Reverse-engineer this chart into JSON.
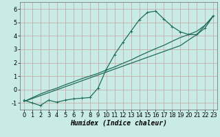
{
  "xlabel": "Humidex (Indice chaleur)",
  "ylabel": "",
  "x": [
    0,
    1,
    2,
    3,
    4,
    5,
    6,
    7,
    8,
    9,
    10,
    11,
    12,
    13,
    14,
    15,
    16,
    17,
    18,
    19,
    20,
    21,
    22,
    23
  ],
  "y_main": [
    -0.8,
    -1.0,
    -1.2,
    -0.8,
    -0.95,
    -0.8,
    -0.7,
    -0.65,
    -0.6,
    0.1,
    1.5,
    2.6,
    3.5,
    4.35,
    5.2,
    5.75,
    5.85,
    5.25,
    4.7,
    4.3,
    4.1,
    4.1,
    4.6,
    5.5
  ],
  "y_line1": [
    -0.9,
    -0.68,
    -0.46,
    -0.24,
    -0.02,
    0.2,
    0.42,
    0.64,
    0.86,
    1.08,
    1.3,
    1.52,
    1.74,
    1.96,
    2.18,
    2.4,
    2.62,
    2.84,
    3.06,
    3.28,
    3.7,
    4.1,
    4.8,
    5.5
  ],
  "y_line2": [
    -0.9,
    -0.62,
    -0.34,
    -0.1,
    0.1,
    0.35,
    0.57,
    0.8,
    1.0,
    1.2,
    1.45,
    1.68,
    1.95,
    2.2,
    2.5,
    2.78,
    3.05,
    3.3,
    3.6,
    3.88,
    4.1,
    4.35,
    4.8,
    5.5
  ],
  "bg_color": "#c8ebe6",
  "grid_color": "#c8a0a0",
  "line_color": "#1e6b5a",
  "marker": "+",
  "ylim": [
    -1.5,
    6.5
  ],
  "xlim": [
    -0.5,
    23.5
  ],
  "yticks": [
    -1,
    0,
    1,
    2,
    3,
    4,
    5,
    6
  ],
  "xticks": [
    0,
    1,
    2,
    3,
    4,
    5,
    6,
    7,
    8,
    9,
    10,
    11,
    12,
    13,
    14,
    15,
    16,
    17,
    18,
    19,
    20,
    21,
    22,
    23
  ],
  "linewidth": 0.9,
  "markersize": 3.5,
  "tick_fontsize": 6,
  "xlabel_fontsize": 7
}
